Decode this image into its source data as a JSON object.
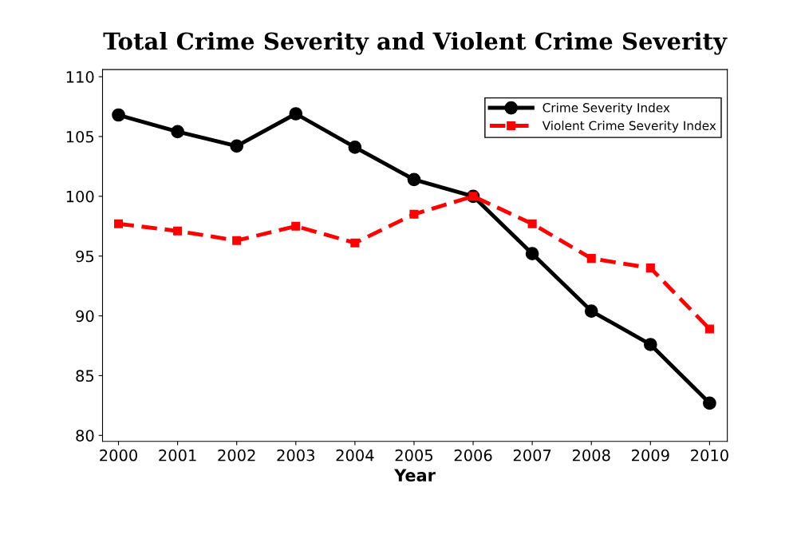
{
  "chart_data": {
    "type": "line",
    "title": "Total Crime Severity and Violent Crime Severity",
    "xlabel": "Year",
    "x": [
      2000,
      2001,
      2002,
      2003,
      2004,
      2005,
      2006,
      2007,
      2008,
      2009,
      2010
    ],
    "series": [
      {
        "name": "Crime Severity Index",
        "color": "#000000",
        "marker": "circle",
        "line_style": "solid",
        "values": [
          106.8,
          105.4,
          104.2,
          106.9,
          104.1,
          101.4,
          100.0,
          95.2,
          90.4,
          87.6,
          82.7
        ]
      },
      {
        "name": "Violent Crime Severity Index",
        "color": "#ff0000",
        "marker": "square",
        "line_style": "dashed",
        "values": [
          97.7,
          97.1,
          96.3,
          97.5,
          96.1,
          98.5,
          100.0,
          97.7,
          94.8,
          94.0,
          88.9
        ]
      }
    ],
    "xlim": [
      1999.73,
      2010.3
    ],
    "xticks": [
      2000,
      2001,
      2002,
      2003,
      2004,
      2005,
      2006,
      2007,
      2008,
      2009,
      2010
    ],
    "ylim": [
      79.5,
      110.6
    ],
    "yticks": [
      80,
      85,
      90,
      95,
      100,
      105,
      110
    ],
    "grid": false,
    "legend": "top right"
  }
}
